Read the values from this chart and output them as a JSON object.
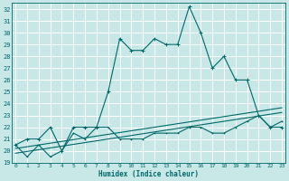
{
  "xlabel": "Humidex (Indice chaleur)",
  "bg_color": "#c8e8e8",
  "grid_color": "#b0d0d0",
  "line_color": "#006868",
  "x_values": [
    0,
    1,
    2,
    3,
    4,
    5,
    6,
    7,
    8,
    9,
    10,
    11,
    12,
    13,
    14,
    15,
    16,
    17,
    18,
    19,
    20,
    21,
    22,
    23
  ],
  "series1": [
    20.5,
    21.0,
    21.0,
    22.0,
    20.0,
    22.0,
    22.0,
    22.0,
    25.0,
    29.5,
    28.5,
    28.5,
    29.5,
    29.0,
    29.0,
    32.2,
    30.0,
    27.0,
    28.0,
    26.0,
    26.0,
    23.0,
    22.0,
    22.0
  ],
  "series2": [
    20.5,
    19.5,
    20.5,
    19.5,
    20.0,
    21.5,
    21.0,
    22.0,
    22.0,
    21.0,
    21.0,
    21.0,
    21.5,
    21.5,
    21.5,
    22.0,
    22.0,
    21.5,
    21.5,
    22.0,
    22.5,
    23.0,
    22.0,
    22.5
  ],
  "series3_linear": [
    20.2,
    20.35,
    20.5,
    20.65,
    20.8,
    20.95,
    21.1,
    21.25,
    21.4,
    21.55,
    21.7,
    21.85,
    22.0,
    22.15,
    22.3,
    22.45,
    22.6,
    22.75,
    22.9,
    23.05,
    23.2,
    23.35,
    23.5,
    23.65
  ],
  "series4_linear": [
    19.8,
    19.95,
    20.1,
    20.25,
    20.4,
    20.55,
    20.7,
    20.85,
    21.0,
    21.15,
    21.3,
    21.45,
    21.6,
    21.75,
    21.9,
    22.05,
    22.2,
    22.35,
    22.5,
    22.65,
    22.8,
    22.95,
    23.1,
    23.25
  ],
  "ylim": [
    19,
    32.5
  ],
  "xlim": [
    -0.3,
    23.3
  ],
  "yticks": [
    19,
    20,
    21,
    22,
    23,
    24,
    25,
    26,
    27,
    28,
    29,
    30,
    31,
    32
  ],
  "xticks": [
    0,
    1,
    2,
    3,
    4,
    5,
    6,
    7,
    8,
    9,
    10,
    11,
    12,
    13,
    14,
    15,
    16,
    17,
    18,
    19,
    20,
    21,
    22,
    23
  ]
}
